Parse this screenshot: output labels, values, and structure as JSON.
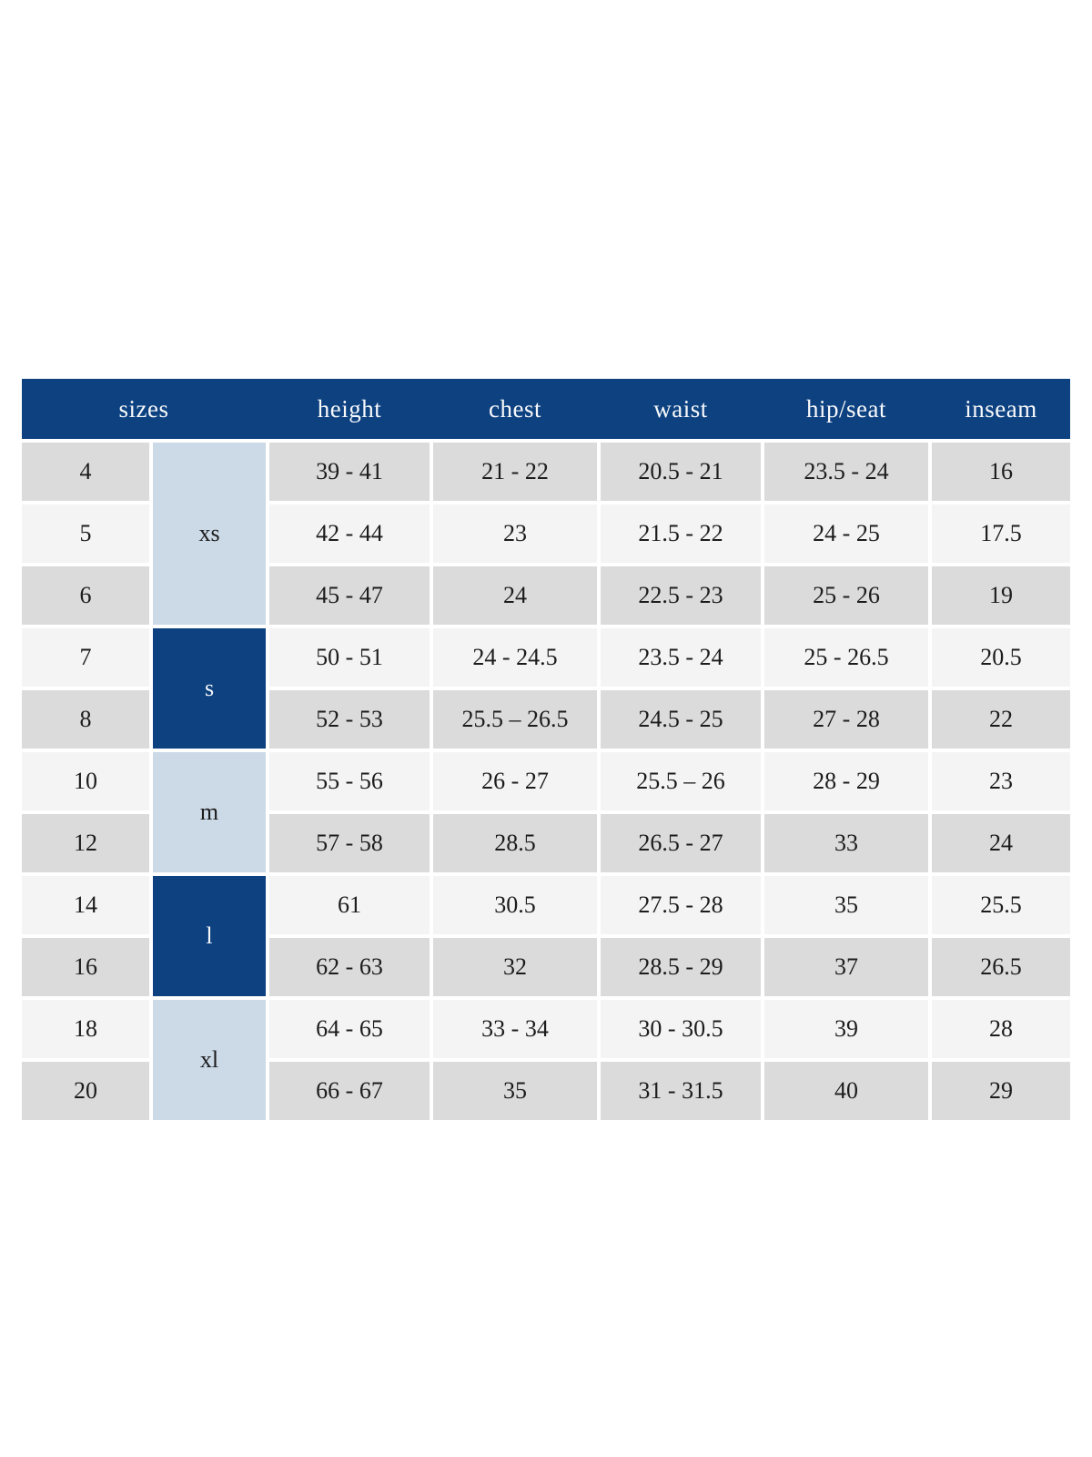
{
  "colors": {
    "page_bg": "#ffffff",
    "header_bg": "#0d4180",
    "header_text": "#f8f9fb",
    "group_dark_bg": "#0d4180",
    "group_light_bg": "#ccd9e7",
    "row_odd_bg": "#dbdbdb",
    "row_even_bg": "#f4f4f4",
    "cell_text": "#1c1c1c",
    "gap_color": "#ffffff"
  },
  "chart_data": {
    "type": "table",
    "columns": [
      "sizes",
      "height",
      "chest",
      "waist",
      "hip/seat",
      "inseam"
    ],
    "groups": [
      {
        "label": "xs",
        "variant": "light",
        "row_span": 3
      },
      {
        "label": "s",
        "variant": "dark",
        "row_span": 2
      },
      {
        "label": "m",
        "variant": "light",
        "row_span": 2
      },
      {
        "label": "l",
        "variant": "dark",
        "row_span": 2
      },
      {
        "label": "xl",
        "variant": "light",
        "row_span": 2
      }
    ],
    "rows": [
      {
        "size": "4",
        "group": "xs",
        "height": "39 - 41",
        "chest": "21 - 22",
        "waist": "20.5 - 21",
        "hip_seat": "23.5 - 24",
        "inseam": "16"
      },
      {
        "size": "5",
        "group": "xs",
        "height": "42 - 44",
        "chest": "23",
        "waist": "21.5 - 22",
        "hip_seat": "24 - 25",
        "inseam": "17.5"
      },
      {
        "size": "6",
        "group": "xs",
        "height": "45 - 47",
        "chest": "24",
        "waist": "22.5 - 23",
        "hip_seat": "25 - 26",
        "inseam": "19"
      },
      {
        "size": "7",
        "group": "s",
        "height": "50 - 51",
        "chest": "24 - 24.5",
        "waist": "23.5 - 24",
        "hip_seat": "25 - 26.5",
        "inseam": "20.5"
      },
      {
        "size": "8",
        "group": "s",
        "height": "52 - 53",
        "chest": "25.5 – 26.5",
        "waist": "24.5 - 25",
        "hip_seat": "27 - 28",
        "inseam": "22"
      },
      {
        "size": "10",
        "group": "m",
        "height": "55 - 56",
        "chest": "26 - 27",
        "waist": "25.5 – 26",
        "hip_seat": "28 - 29",
        "inseam": "23"
      },
      {
        "size": "12",
        "group": "m",
        "height": "57 - 58",
        "chest": "28.5",
        "waist": "26.5 - 27",
        "hip_seat": "33",
        "inseam": "24"
      },
      {
        "size": "14",
        "group": "l",
        "height": "61",
        "chest": "30.5",
        "waist": "27.5 - 28",
        "hip_seat": "35",
        "inseam": "25.5"
      },
      {
        "size": "16",
        "group": "l",
        "height": "62 - 63",
        "chest": "32",
        "waist": "28.5 - 29",
        "hip_seat": "37",
        "inseam": "26.5"
      },
      {
        "size": "18",
        "group": "xl",
        "height": "64 - 65",
        "chest": "33 - 34",
        "waist": "30 - 30.5",
        "hip_seat": "39",
        "inseam": "28"
      },
      {
        "size": "20",
        "group": "xl",
        "height": "66 - 67",
        "chest": "35",
        "waist": "31 - 31.5",
        "hip_seat": "40",
        "inseam": "29"
      }
    ],
    "layout_hints": {
      "striped_rows": true,
      "first_data_row_shade": "odd",
      "merged_group_column_index": 1,
      "header_spans_first_two_columns": true,
      "legend": "none",
      "grid": "white 4px gaps between cells"
    }
  }
}
